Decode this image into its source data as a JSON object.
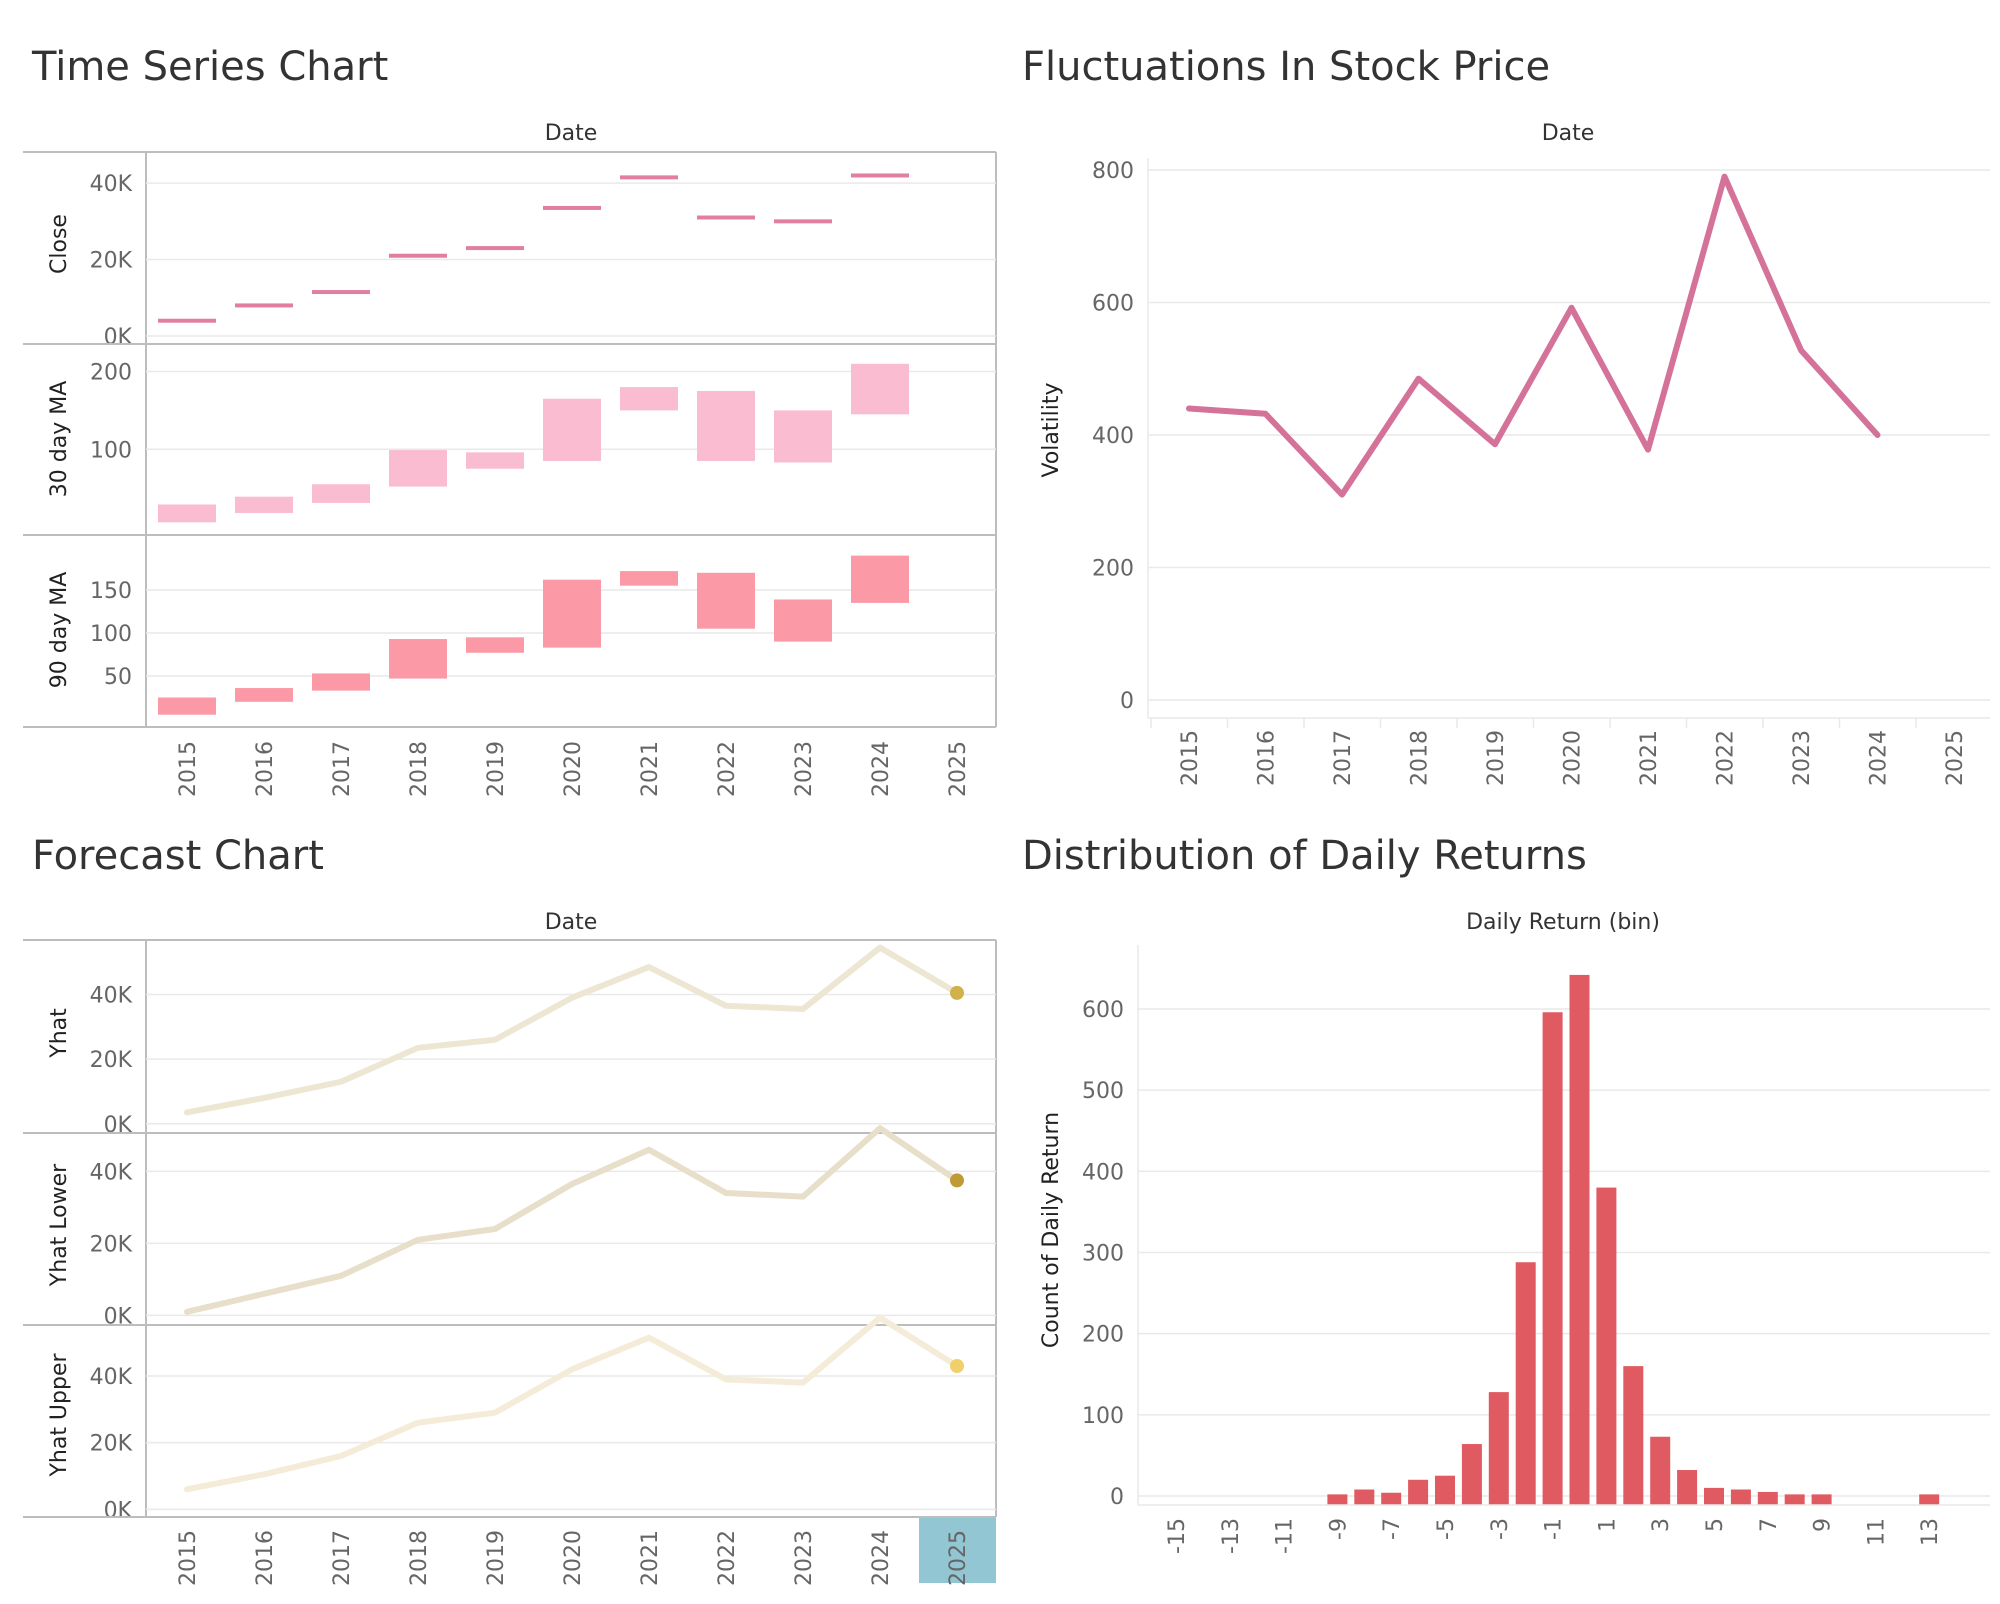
{
  "years": [
    "2015",
    "2016",
    "2017",
    "2018",
    "2019",
    "2020",
    "2021",
    "2022",
    "2023",
    "2024",
    "2025"
  ],
  "colors": {
    "close": "#e07fa2",
    "ma30": "#f9bcd0",
    "ma90": "#fb9aa6",
    "volatility": "#d4729a",
    "yhat": "#ede6d3",
    "yhat_lower": "#e7dfc9",
    "yhat_upper": "#f4ecd8",
    "hist": "#e05a61",
    "yhat_dot": "#d1b24a",
    "yhat_lower_dot": "#bf9b38",
    "yhat_upper_dot": "#f1cf6b",
    "highlight": "#92c6d3"
  },
  "panels": {
    "timeseries": {
      "title": "Time Series Chart",
      "header": "Date",
      "y1_label": "Close",
      "y2_label": "30 day MA",
      "y3_label": "90 day MA"
    },
    "volatility": {
      "title": "Fluctuations In Stock Price",
      "header": "Date",
      "ylabel": "Volatility"
    },
    "forecast": {
      "title": "Forecast Chart",
      "header": "Date",
      "y1_label": "Yhat",
      "y2_label": "Yhat Lower",
      "y3_label": "Yhat Upper"
    },
    "returns": {
      "title": "Distribution of Daily Returns",
      "header": "Daily Return (bin)",
      "ylabel": "Count of Daily Return"
    }
  },
  "chart_data": [
    {
      "type": "bar",
      "title": "Time Series Chart",
      "xlabel": "Date",
      "categories": [
        "2015",
        "2016",
        "2017",
        "2018",
        "2019",
        "2020",
        "2021",
        "2022",
        "2023",
        "2024",
        "2025"
      ],
      "series": [
        {
          "name": "Close",
          "mark": "tick",
          "values": [
            4000,
            8000,
            11500,
            21000,
            23000,
            33500,
            41500,
            31000,
            30000,
            42000,
            null
          ],
          "ylim": [
            0,
            45000
          ],
          "ticks": [
            0,
            20000,
            40000
          ],
          "tick_labels": [
            "0K",
            "20K",
            "40K"
          ]
        },
        {
          "name": "30 day MA",
          "mark": "range",
          "ranges": [
            [
              6,
              29
            ],
            [
              18,
              39
            ],
            [
              31,
              55
            ],
            [
              52,
              99
            ],
            [
              75,
              96
            ],
            [
              85,
              165
            ],
            [
              150,
              180
            ],
            [
              85,
              175
            ],
            [
              83,
              150
            ],
            [
              145,
              210
            ],
            null
          ],
          "ylim": [
            0,
            220
          ],
          "ticks": [
            100,
            200
          ],
          "tick_labels": [
            "100",
            "200"
          ]
        },
        {
          "name": "90 day MA",
          "mark": "range",
          "ranges": [
            [
              5,
              25
            ],
            [
              20,
              36
            ],
            [
              33,
              53
            ],
            [
              47,
              93
            ],
            [
              77,
              95
            ],
            [
              83,
              162
            ],
            [
              155,
              172
            ],
            [
              105,
              170
            ],
            [
              90,
              139
            ],
            [
              135,
              190
            ],
            null
          ],
          "ylim": [
            0,
            200
          ],
          "ticks": [
            50,
            100,
            150
          ],
          "tick_labels": [
            "50",
            "100",
            "150"
          ]
        }
      ]
    },
    {
      "type": "line",
      "title": "Fluctuations In Stock Price",
      "xlabel": "Date",
      "ylabel": "Volatility",
      "x": [
        "2015",
        "2016",
        "2017",
        "2018",
        "2019",
        "2020",
        "2021",
        "2022",
        "2023",
        "2024",
        "2025"
      ],
      "values": [
        440,
        432,
        310,
        485,
        386,
        592,
        378,
        790,
        528,
        400,
        null
      ],
      "ylim": [
        0,
        815
      ],
      "ticks": [
        0,
        200,
        400,
        600,
        800
      ]
    },
    {
      "type": "line",
      "title": "Forecast Chart",
      "xlabel": "Date",
      "x": [
        "2015",
        "2016",
        "2017",
        "2018",
        "2019",
        "2020",
        "2021",
        "2022",
        "2023",
        "2024",
        "2025"
      ],
      "highlight": "2025",
      "series": [
        {
          "name": "Yhat",
          "values": [
            3500,
            8000,
            13000,
            23500,
            26000,
            39000,
            48500,
            36500,
            35500,
            54500,
            40500
          ],
          "ylim": [
            -1000,
            55000
          ],
          "ticks": [
            0,
            20000,
            40000
          ],
          "tick_labels": [
            "0K",
            "20K",
            "40K"
          ]
        },
        {
          "name": "Yhat Lower",
          "values": [
            1000,
            6000,
            11000,
            21000,
            24000,
            36500,
            46000,
            34000,
            33000,
            52000,
            37500
          ],
          "ylim": [
            -1000,
            49000
          ],
          "ticks": [
            0,
            20000,
            40000
          ],
          "tick_labels": [
            "0K",
            "20K",
            "40K"
          ]
        },
        {
          "name": "Yhat Upper",
          "values": [
            6000,
            10500,
            16000,
            26000,
            29000,
            42000,
            51500,
            39000,
            38000,
            57500,
            43000
          ],
          "ylim": [
            -500,
            53500
          ],
          "ticks": [
            0,
            20000,
            40000
          ],
          "tick_labels": [
            "0K",
            "20K",
            "40K"
          ]
        }
      ]
    },
    {
      "type": "bar",
      "title": "Distribution of Daily Returns",
      "xlabel": "Daily Return (bin)",
      "ylabel": "Count of Daily Return",
      "categories": [
        "-15",
        "-14",
        "-13",
        "-12",
        "-11",
        "-10",
        "-9",
        "-8",
        "-7",
        "-6",
        "-5",
        "-4",
        "-3",
        "-2",
        "-1",
        "0",
        "1",
        "2",
        "3",
        "4",
        "5",
        "6",
        "7",
        "8",
        "9",
        "10",
        "11",
        "12",
        "13"
      ],
      "tick_labels": [
        "-15",
        "-13",
        "-11",
        "-9",
        "-7",
        "-5",
        "-3",
        "-1",
        "1",
        "3",
        "5",
        "7",
        "9",
        "11",
        "13"
      ],
      "values": [
        0,
        0,
        0,
        0,
        0,
        0,
        2,
        8,
        4,
        20,
        25,
        64,
        128,
        288,
        596,
        642,
        380,
        160,
        73,
        32,
        10,
        8,
        5,
        2,
        2,
        0,
        0,
        0,
        2
      ],
      "ylim": [
        -18,
        650
      ],
      "ticks": [
        0,
        100,
        200,
        300,
        400,
        500,
        600
      ]
    }
  ]
}
